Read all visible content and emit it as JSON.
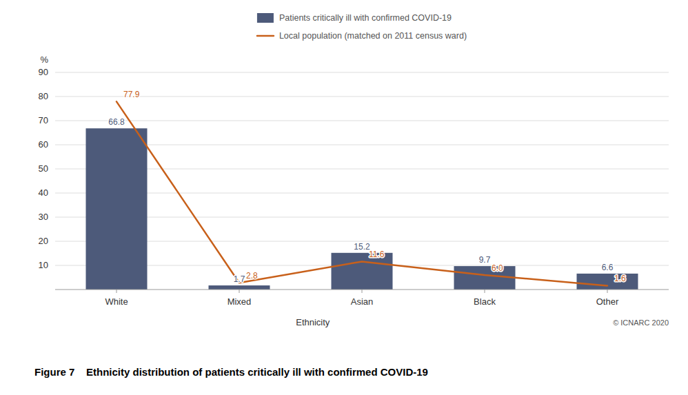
{
  "chart_data": {
    "type": "bar",
    "title": "Figure 7    Ethnicity distribution of patients critically ill with confirmed COVID-19",
    "x_label": "Ethnicity",
    "y_label": "%",
    "annotations": [
      "© ICNARC 2020"
    ],
    "categories": [
      "White",
      "Mixed",
      "Asian",
      "Black",
      "Other"
    ],
    "series": [
      {
        "name": "Patients critically ill with confirmed COVID-19",
        "type": "bar",
        "color": "#4D5A7A",
        "values": [
          66.8,
          1.7,
          15.2,
          9.7,
          6.6
        ]
      },
      {
        "name": "Local population (matched on 2011 census ward)",
        "type": "line",
        "color": "#C8601A",
        "values": [
          77.9,
          2.8,
          11.6,
          6.0,
          1.6
        ],
        "value_labels": [
          "77.9",
          "2.8",
          "11.6",
          "6.0",
          "1.6"
        ]
      }
    ],
    "ylim": [
      0,
      90
    ],
    "yticks": [
      10,
      20,
      30,
      40,
      50,
      60,
      70,
      80,
      90
    ],
    "grid": true,
    "legend": "top",
    "data_labels": true
  }
}
